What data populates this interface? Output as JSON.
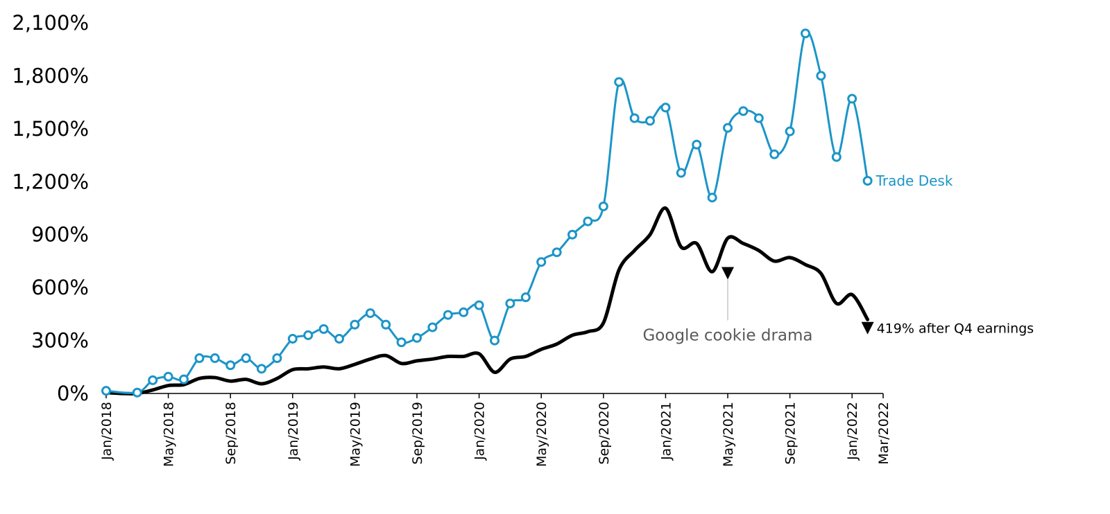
{
  "chart_data": {
    "type": "line",
    "title": "",
    "xlabel": "",
    "ylabel": "",
    "ylim": [
      0,
      2100
    ],
    "y_ticks": [
      0,
      300,
      600,
      900,
      1200,
      1500,
      1800,
      2100
    ],
    "y_tick_labels": [
      "0%",
      "300%",
      "600%",
      "900%",
      "1,200%",
      "1,500%",
      "1,800%",
      "2,100%"
    ],
    "x_tick_labels": [
      "Jan/2018",
      "May/2018",
      "Sep/2018",
      "Jan/2019",
      "May/2019",
      "Sep/2019",
      "Jan/2020",
      "May/2020",
      "Sep/2020",
      "Jan/2021",
      "May/2021",
      "Sep/2021",
      "Jan/2022",
      "Mar/2022"
    ],
    "grid": false,
    "legend": "none",
    "series": [
      {
        "name": "Trade Desk",
        "color": "#1b95c8",
        "markers": true,
        "x": [
          "Jan/2018",
          "Feb/2018",
          "Mar/2018",
          "Apr/2018",
          "May/2018",
          "Jun/2018",
          "Jul/2018",
          "Aug/2018",
          "Sep/2018",
          "Oct/2018",
          "Nov/2018",
          "Dec/2018",
          "Jan/2019",
          "Feb/2019",
          "Mar/2019",
          "Apr/2019",
          "May/2019",
          "Jun/2019",
          "Jul/2019",
          "Aug/2019",
          "Sep/2019",
          "Oct/2019",
          "Nov/2019",
          "Dec/2019",
          "Jan/2020",
          "Feb/2020",
          "Mar/2020",
          "Apr/2020",
          "May/2020",
          "Jun/2020",
          "Jul/2020",
          "Aug/2020",
          "Sep/2020",
          "Oct/2020",
          "Nov/2020",
          "Dec/2020",
          "Jan/2021",
          "Feb/2021",
          "Mar/2021",
          "Apr/2021",
          "May/2021",
          "Jun/2021",
          "Jul/2021",
          "Aug/2021",
          "Sep/2021",
          "Oct/2021",
          "Nov/2021",
          "Dec/2021",
          "Jan/2022",
          "Feb/2022",
          "Mar/2022"
        ],
        "values": [
          15,
          null,
          5,
          75,
          95,
          80,
          200,
          200,
          160,
          200,
          140,
          200,
          310,
          330,
          365,
          310,
          390,
          455,
          390,
          290,
          315,
          375,
          445,
          460,
          500,
          300,
          510,
          545,
          745,
          800,
          900,
          975,
          1060,
          1765,
          1560,
          1545,
          1620,
          1250,
          1410,
          1110,
          1505,
          1600,
          1560,
          1355,
          1485,
          2040,
          1800,
          1340,
          1670,
          1205,
          null
        ]
      },
      {
        "name": "",
        "color": "#000000",
        "markers": false,
        "x": [
          "Jan/2018",
          "Feb/2018",
          "Mar/2018",
          "Apr/2018",
          "May/2018",
          "Jun/2018",
          "Jul/2018",
          "Aug/2018",
          "Sep/2018",
          "Oct/2018",
          "Nov/2018",
          "Dec/2018",
          "Jan/2019",
          "Feb/2019",
          "Mar/2019",
          "Apr/2019",
          "May/2019",
          "Jun/2019",
          "Jul/2019",
          "Aug/2019",
          "Sep/2019",
          "Oct/2019",
          "Nov/2019",
          "Dec/2019",
          "Jan/2020",
          "Feb/2020",
          "Mar/2020",
          "Apr/2020",
          "May/2020",
          "Jun/2020",
          "Jul/2020",
          "Aug/2020",
          "Sep/2020",
          "Oct/2020",
          "Nov/2020",
          "Dec/2020",
          "Jan/2021",
          "Feb/2021",
          "Mar/2021",
          "Apr/2021",
          "May/2021",
          "Jun/2021",
          "Jul/2021",
          "Aug/2021",
          "Sep/2021",
          "Oct/2021",
          "Nov/2021",
          "Dec/2021",
          "Jan/2022",
          "Feb/2022",
          "Mar/2022"
        ],
        "values": [
          5,
          0,
          0,
          20,
          45,
          50,
          85,
          90,
          70,
          80,
          55,
          85,
          135,
          140,
          150,
          140,
          165,
          195,
          215,
          170,
          185,
          195,
          210,
          210,
          225,
          120,
          195,
          210,
          250,
          280,
          330,
          350,
          400,
          700,
          810,
          900,
          1050,
          830,
          850,
          690,
          880,
          850,
          810,
          750,
          770,
          730,
          680,
          510,
          560,
          419,
          null
        ]
      }
    ],
    "annotations": {
      "google": {
        "text": "Google cookie drama",
        "x": "May/2021",
        "y": 630
      },
      "earnings": {
        "text": "419% after Q4 earnings",
        "x": "Feb/2022",
        "y": 370
      },
      "series_label": {
        "text": "Trade Desk",
        "x": "Feb/2022",
        "y": 1205
      }
    }
  }
}
